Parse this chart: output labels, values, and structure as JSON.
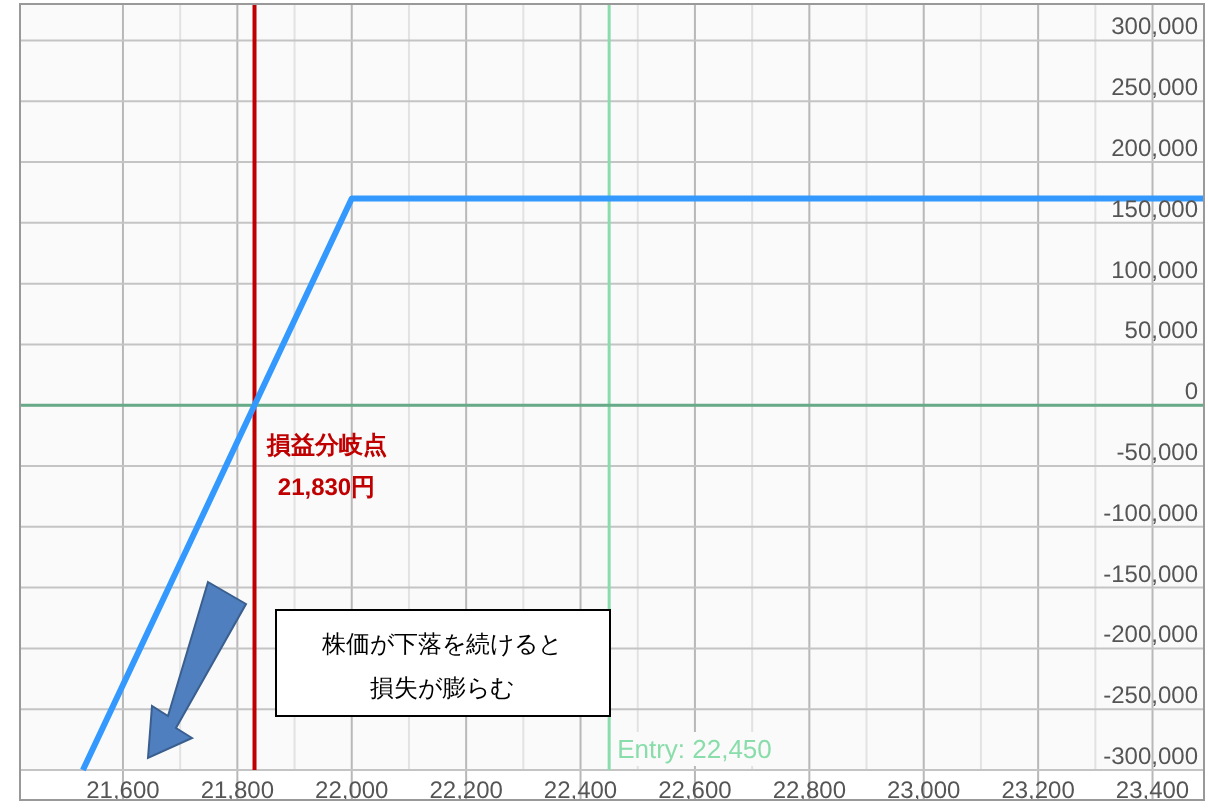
{
  "chart_data": {
    "type": "line",
    "x": [
      21530,
      22000,
      23490
    ],
    "series": [
      {
        "color": "#3399ff",
        "values": [
          -300000,
          170000,
          170000
        ]
      }
    ],
    "xlim": [
      21420,
      23490
    ],
    "xticks": [
      {
        "value": 21600,
        "label": "21,600"
      },
      {
        "value": 21800,
        "label": "21,800"
      },
      {
        "value": 22000,
        "label": "22,000"
      },
      {
        "value": 22200,
        "label": "22,200"
      },
      {
        "value": 22400,
        "label": "22,400"
      },
      {
        "value": 22600,
        "label": "22,600"
      },
      {
        "value": 22800,
        "label": "22,800"
      },
      {
        "value": 23000,
        "label": "23,000"
      },
      {
        "value": 23200,
        "label": "23,200"
      },
      {
        "value": 23400,
        "label": "23,400"
      }
    ],
    "ylim": [
      -300000,
      330000
    ],
    "yticks": [
      {
        "value": -300000,
        "label": "-300,000"
      },
      {
        "value": -250000,
        "label": "-250,000"
      },
      {
        "value": -200000,
        "label": "-200,000"
      },
      {
        "value": -150000,
        "label": "-150,000"
      },
      {
        "value": -100000,
        "label": "-100,000"
      },
      {
        "value": -50000,
        "label": "-50,000"
      },
      0,
      {
        "value": 50000,
        "label": "50,000"
      },
      {
        "value": 100000,
        "label": "100,000"
      },
      {
        "value": 150000,
        "label": "150,000"
      },
      {
        "value": 200000,
        "label": "200,000"
      },
      {
        "value": 250000,
        "label": "250,000"
      },
      {
        "value": 300000,
        "label": "300,000"
      }
    ],
    "grid": true,
    "ref_lines": [
      {
        "axis": "x",
        "value": 21830,
        "label": "損益分岐点\n21,830円",
        "color": "#c00000"
      },
      {
        "axis": "x",
        "value": 22450,
        "label": "Entry: 22,450",
        "color": "#88ddaa"
      },
      {
        "axis": "y",
        "value": 0,
        "color": "#66aa88"
      }
    ],
    "annotations": [
      "株価が下落を続けると",
      "損失が膨らむ"
    ]
  }
}
